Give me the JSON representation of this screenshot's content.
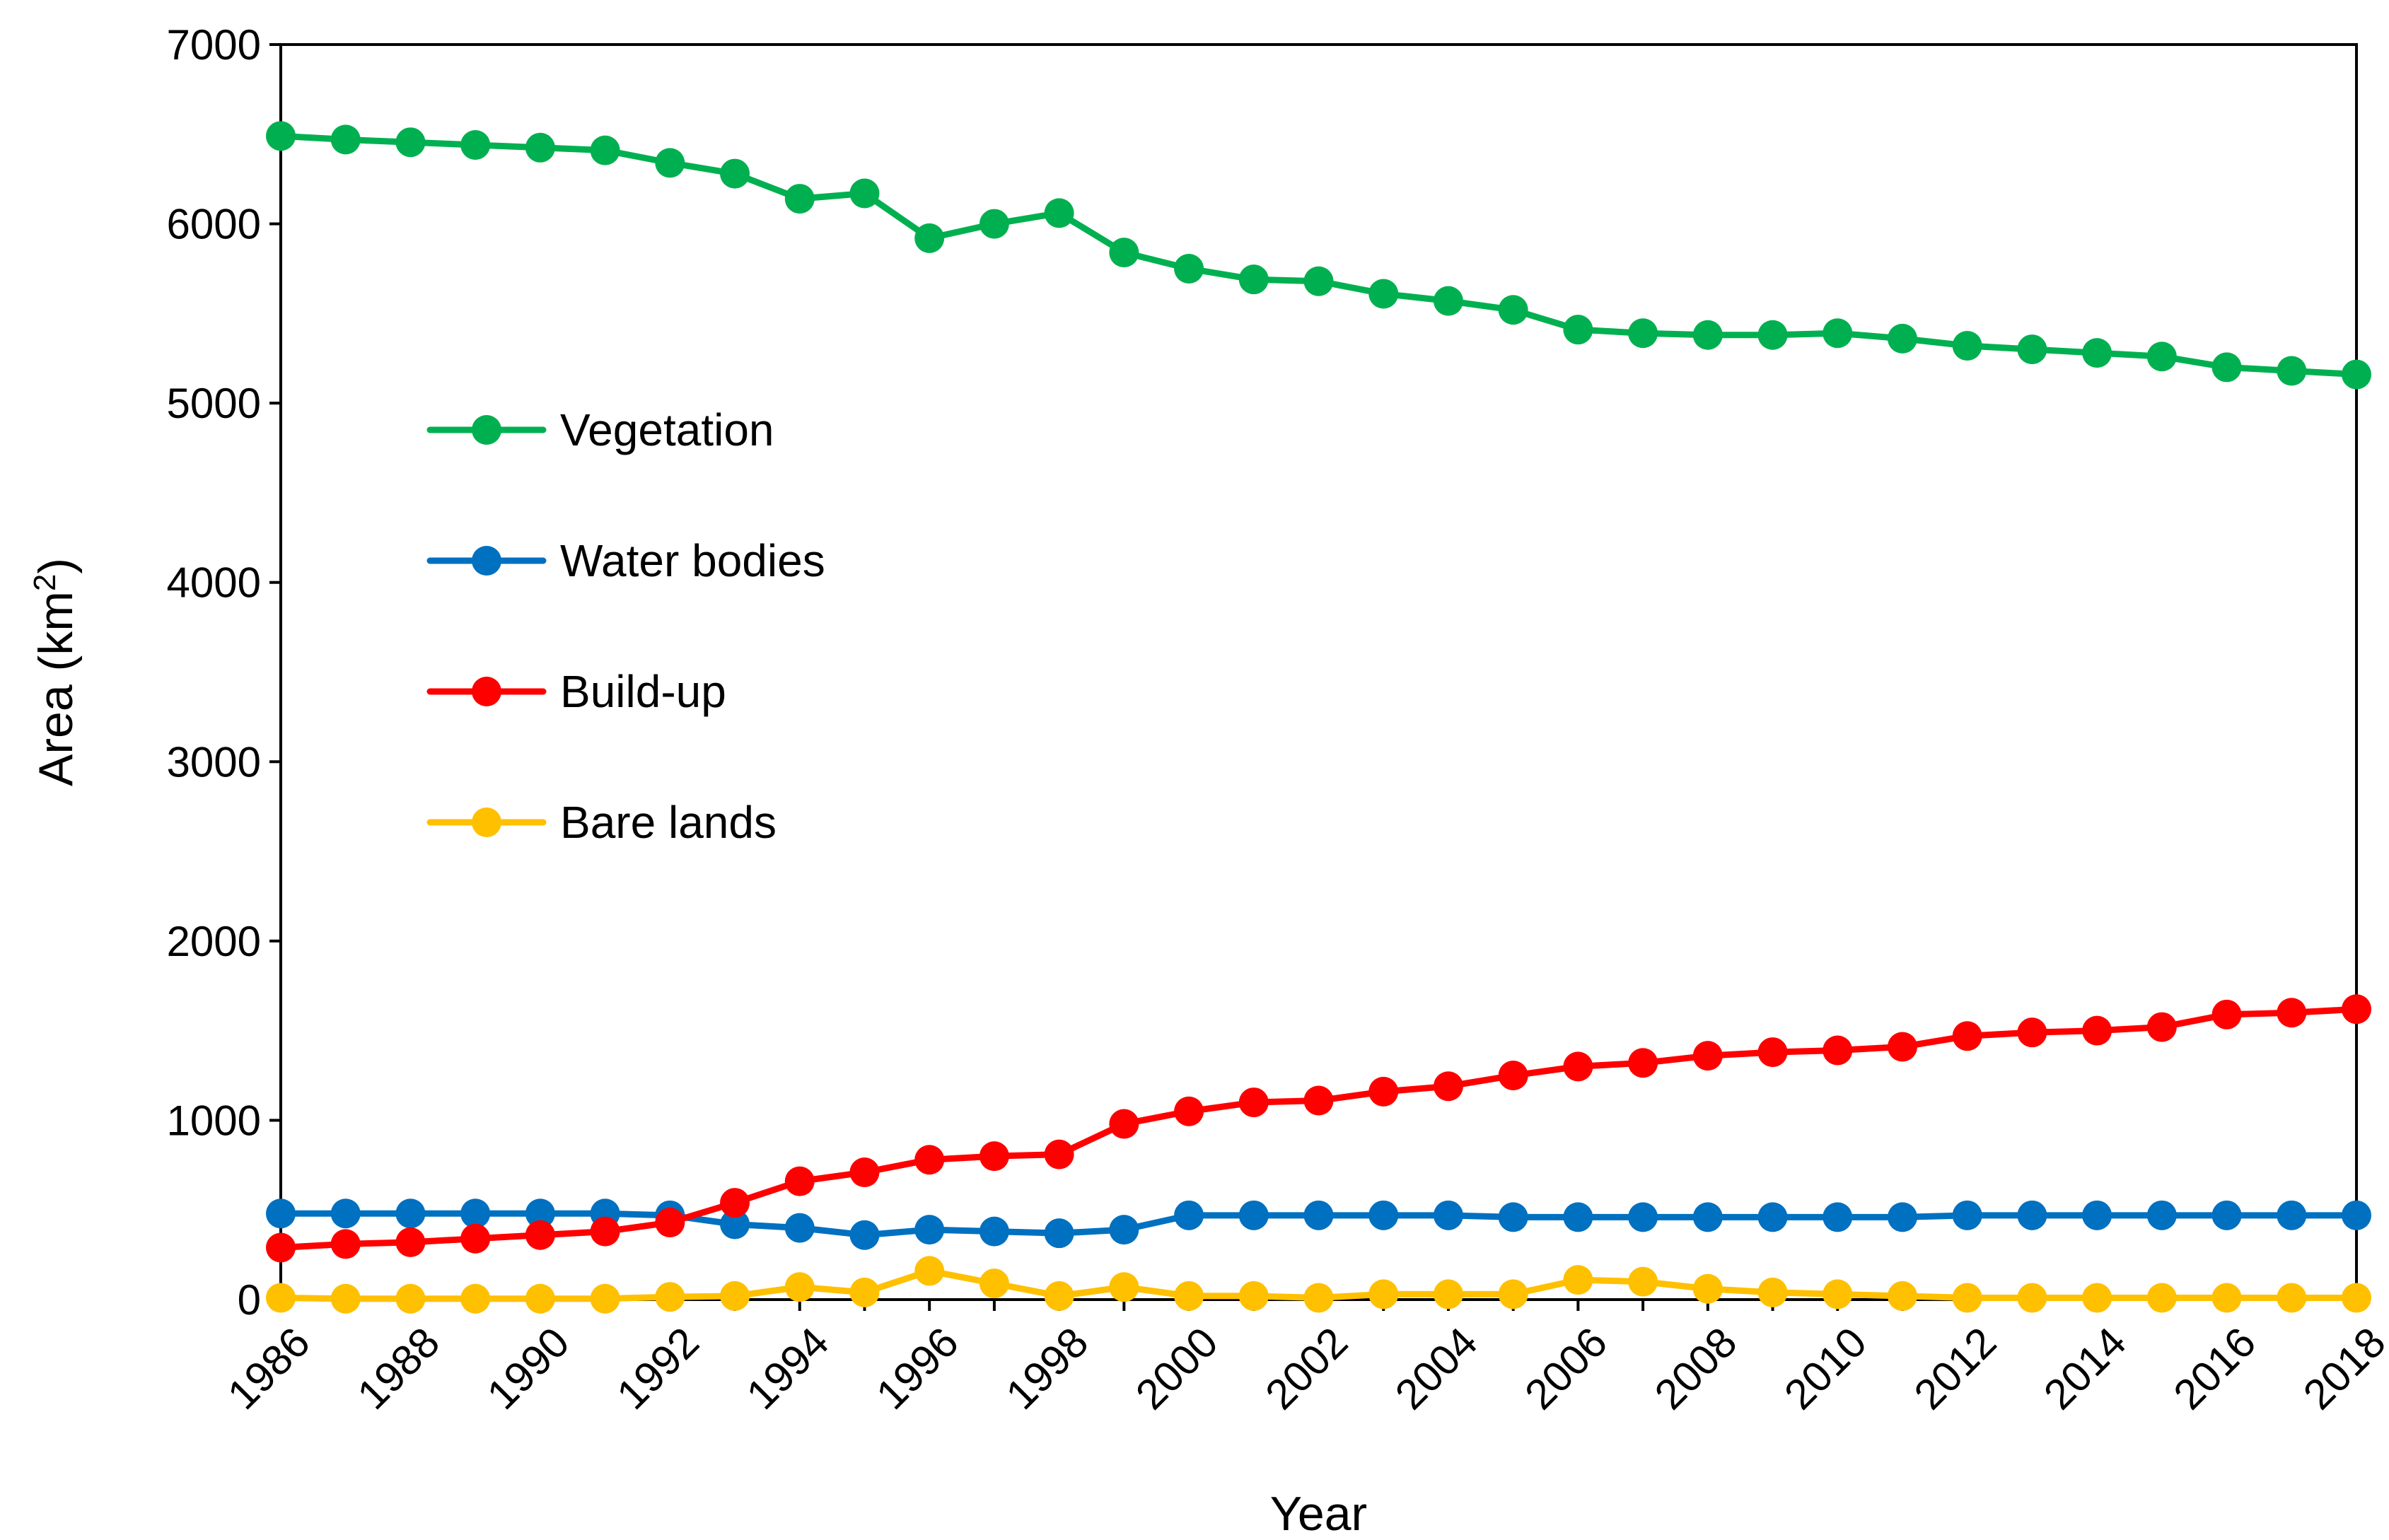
{
  "chart_data": {
    "type": "line",
    "title": "",
    "xlabel": "Year",
    "ylabel_main": "Area (km",
    "ylabel_sup": "2",
    "ylabel_close": ")",
    "xlim": [
      1986,
      2018
    ],
    "ylim": [
      0,
      7000
    ],
    "grid": false,
    "legend_position": "upper-left inside",
    "x": [
      1986,
      1987,
      1988,
      1989,
      1990,
      1991,
      1992,
      1993,
      1994,
      1995,
      1996,
      1997,
      1998,
      1999,
      2000,
      2001,
      2002,
      2003,
      2004,
      2005,
      2006,
      2007,
      2008,
      2009,
      2010,
      2011,
      2012,
      2013,
      2014,
      2015,
      2016,
      2017,
      2018
    ],
    "x_tick_labels": [
      "1986",
      "1988",
      "1990",
      "1992",
      "1994",
      "1996",
      "1998",
      "2000",
      "2002",
      "2004",
      "2006",
      "2008",
      "2010",
      "2012",
      "2014",
      "2016",
      "2018"
    ],
    "y_ticks": [
      0,
      1000,
      2000,
      3000,
      4000,
      5000,
      6000,
      7000
    ],
    "y_tick_labels": [
      "0",
      "1000",
      "2000",
      "3000",
      "4000",
      "5000",
      "6000",
      "7000"
    ],
    "series": [
      {
        "name": "Vegetation",
        "color": "#00B050",
        "values": [
          6490,
          6470,
          6455,
          6440,
          6425,
          6410,
          6340,
          6280,
          6140,
          6170,
          5920,
          6000,
          6060,
          5840,
          5750,
          5690,
          5680,
          5610,
          5570,
          5520,
          5410,
          5390,
          5380,
          5380,
          5390,
          5360,
          5320,
          5300,
          5280,
          5260,
          5200,
          5180,
          5160
        ]
      },
      {
        "name": "Water bodies",
        "color": "#0070C0",
        "values": [
          480,
          480,
          480,
          480,
          480,
          480,
          470,
          420,
          400,
          360,
          390,
          380,
          370,
          390,
          470,
          470,
          470,
          470,
          470,
          460,
          460,
          460,
          460,
          460,
          460,
          460,
          470,
          470,
          470,
          470,
          470,
          470,
          470
        ]
      },
      {
        "name": "Build-up",
        "color": "#FF0000",
        "values": [
          290,
          310,
          320,
          340,
          360,
          380,
          430,
          540,
          660,
          710,
          780,
          800,
          810,
          980,
          1050,
          1100,
          1110,
          1160,
          1190,
          1250,
          1300,
          1320,
          1360,
          1380,
          1390,
          1410,
          1470,
          1490,
          1500,
          1520,
          1590,
          1600,
          1620
        ]
      },
      {
        "name": "Bare lands",
        "color": "#FFC000",
        "values": [
          10,
          5,
          5,
          5,
          5,
          5,
          15,
          20,
          70,
          40,
          160,
          90,
          20,
          70,
          20,
          20,
          10,
          30,
          30,
          30,
          110,
          100,
          60,
          40,
          30,
          20,
          10,
          10,
          10,
          10,
          10,
          10,
          10
        ]
      }
    ]
  }
}
